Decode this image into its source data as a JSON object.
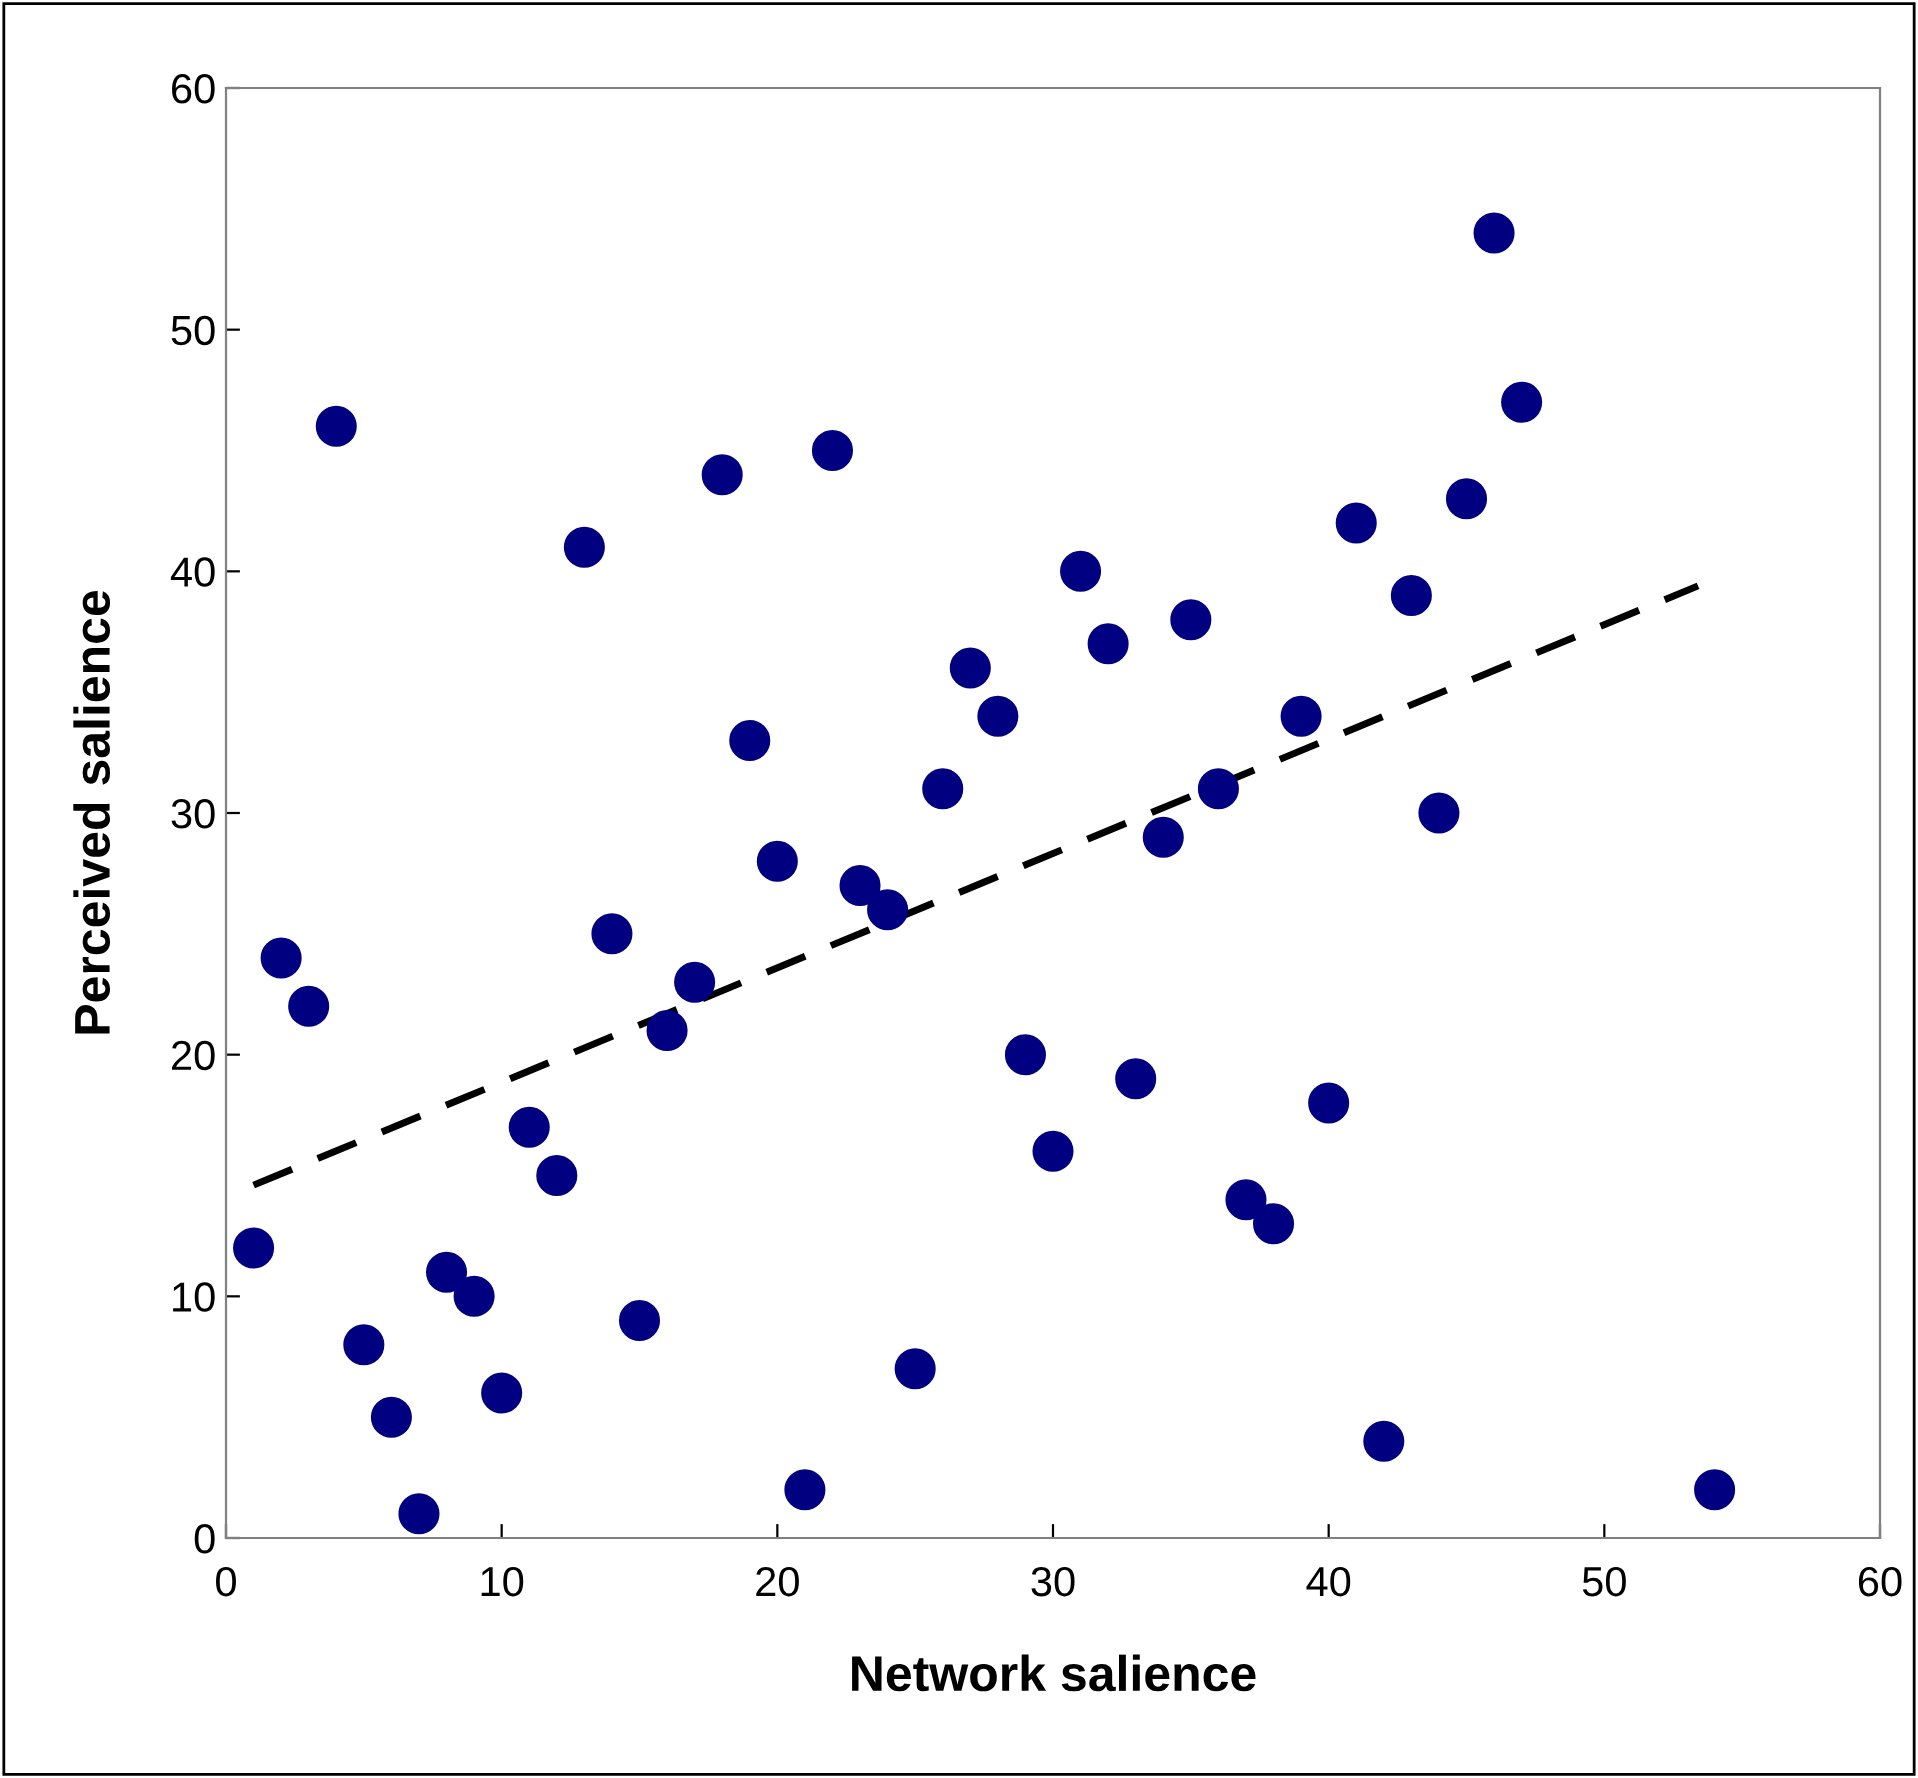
{
  "chart_data": {
    "type": "scatter",
    "xlabel": "Network salience",
    "ylabel": "Perceived salience",
    "xlim": [
      0,
      60
    ],
    "ylim": [
      0,
      60
    ],
    "xticks": [
      0,
      10,
      20,
      30,
      40,
      50,
      60
    ],
    "yticks": [
      0,
      10,
      20,
      30,
      40,
      50,
      60
    ],
    "grid": false,
    "legend": false,
    "series": [
      {
        "marker": "circle",
        "color": "#000080",
        "x": [
          1,
          2,
          3,
          4,
          5,
          6,
          7,
          8,
          9,
          10,
          11,
          12,
          13,
          14,
          15,
          16,
          17,
          18,
          19,
          20,
          21,
          22,
          23,
          24,
          25,
          26,
          27,
          28,
          29,
          30,
          31,
          32,
          33,
          34,
          35,
          36,
          37,
          38,
          39,
          40,
          41,
          42,
          43,
          44,
          45,
          46,
          47,
          54
        ],
        "values": [
          12,
          24,
          22,
          46,
          8,
          5,
          1,
          11,
          10,
          6,
          17,
          15,
          41,
          25,
          9,
          21,
          23,
          44,
          33,
          28,
          2,
          45,
          27,
          26,
          7,
          31,
          36,
          34,
          20,
          16,
          40,
          37,
          19,
          29,
          38,
          31,
          14,
          13,
          34,
          18,
          42,
          4,
          39,
          30,
          43,
          54,
          47,
          2
        ]
      },
      {
        "type": "line",
        "color": "#000000",
        "line_style": "dashed",
        "x": [
          1,
          53.4
        ],
        "values": [
          14.6,
          39.4
        ]
      }
    ]
  }
}
